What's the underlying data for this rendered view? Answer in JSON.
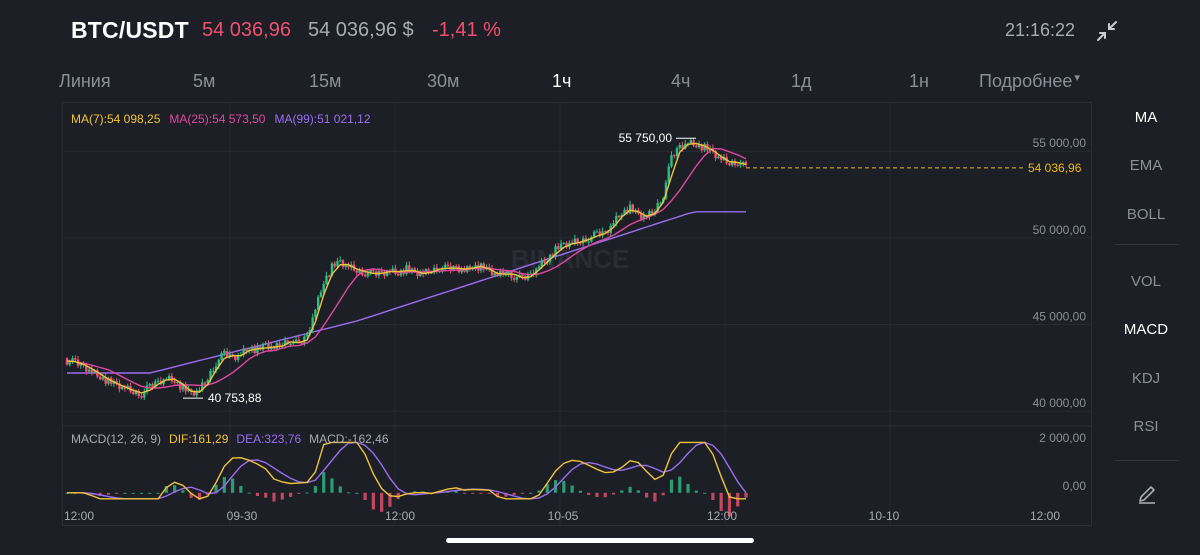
{
  "header": {
    "pair": "BTC/USDT",
    "last_price": "54 036,96",
    "usd_price": "54 036,96 $",
    "change": "-1,41 %",
    "clock": "21:16:22",
    "collapse_icon": "collapse-arrows-icon"
  },
  "tabs": [
    {
      "label": "Линия",
      "active": false
    },
    {
      "label": "5м",
      "active": false
    },
    {
      "label": "15м",
      "active": false
    },
    {
      "label": "30м",
      "active": false
    },
    {
      "label": "1ч",
      "active": true
    },
    {
      "label": "4ч",
      "active": false
    },
    {
      "label": "1д",
      "active": false
    },
    {
      "label": "1н",
      "active": false
    },
    {
      "label": "Подробнее",
      "active": false
    }
  ],
  "ma_legend": {
    "ma7": "MA(7):54 098,25",
    "ma25": "MA(25):54 573,50",
    "ma99": "MA(99):51 021,12"
  },
  "macd_legend": {
    "name": "MACD(12, 26, 9)",
    "dif": "DIF:161,29",
    "dea": "DEA:323,76",
    "macd": "MACD:-162,46"
  },
  "watermark": "BINANCE",
  "colors": {
    "background": "#1c1f26",
    "up": "#2ebd85",
    "down": "#f0506e",
    "ma7": "#f0c33c",
    "ma25": "#e0489f",
    "ma99": "#9a6ef0",
    "price_tag": "#f0b90b"
  },
  "side_menu": [
    {
      "label": "MA",
      "active": true
    },
    {
      "label": "EMA",
      "active": false
    },
    {
      "label": "BOLL",
      "active": false
    },
    {
      "label": "VOL",
      "active": false
    },
    {
      "label": "MACD",
      "active": true
    },
    {
      "label": "KDJ",
      "active": false
    },
    {
      "label": "RSI",
      "active": false
    }
  ],
  "draw_icon": "pencil-icon",
  "chart_data": {
    "type": "candlestick",
    "price_axis": {
      "ticks": [
        "55 000,00",
        "50 000,00",
        "45 000,00",
        "40 000,00"
      ],
      "tick_values": [
        55000,
        50000,
        45000,
        40000
      ],
      "range": [
        39200,
        56800
      ]
    },
    "current_price": {
      "label": "54 036,96",
      "value": 54036.96
    },
    "high_annotation": {
      "label": "55 750,00",
      "value": 55750
    },
    "low_annotation": {
      "label": "40 753,88",
      "value": 40753.88
    },
    "macd_axis": {
      "ticks": [
        "2 000,00",
        "0,00"
      ],
      "tick_values": [
        2000,
        0
      ],
      "range": [
        -300,
        2200
      ]
    },
    "time_axis": [
      "12:00",
      "09-30",
      "12:00",
      "10-05",
      "12:00",
      "10-10",
      "12:00"
    ],
    "close_series": [
      42900,
      42800,
      42600,
      42300,
      42000,
      41700,
      41500,
      41300,
      41100,
      41000,
      41400,
      41700,
      41900,
      41800,
      41300,
      41000,
      41200,
      41900,
      42800,
      43300,
      43100,
      43300,
      43700,
      43500,
      43800,
      43600,
      43900,
      44100,
      43800,
      44400,
      45900,
      47500,
      48300,
      48600,
      48300,
      48100,
      48000,
      47900,
      48000,
      48100,
      48000,
      48200,
      48000,
      47900,
      48100,
      48300,
      48200,
      48300,
      48100,
      48400,
      48300,
      48100,
      47800,
      48000,
      47800,
      47600,
      47900,
      48400,
      48800,
      49300,
      49600,
      49700,
      49800,
      50000,
      50200,
      50300,
      50900,
      51500,
      51700,
      51300,
      51200,
      51600,
      52500,
      54600,
      55300,
      55500,
      55400,
      55200,
      54900,
      54500,
      54300,
      54400,
      54050
    ]
  }
}
